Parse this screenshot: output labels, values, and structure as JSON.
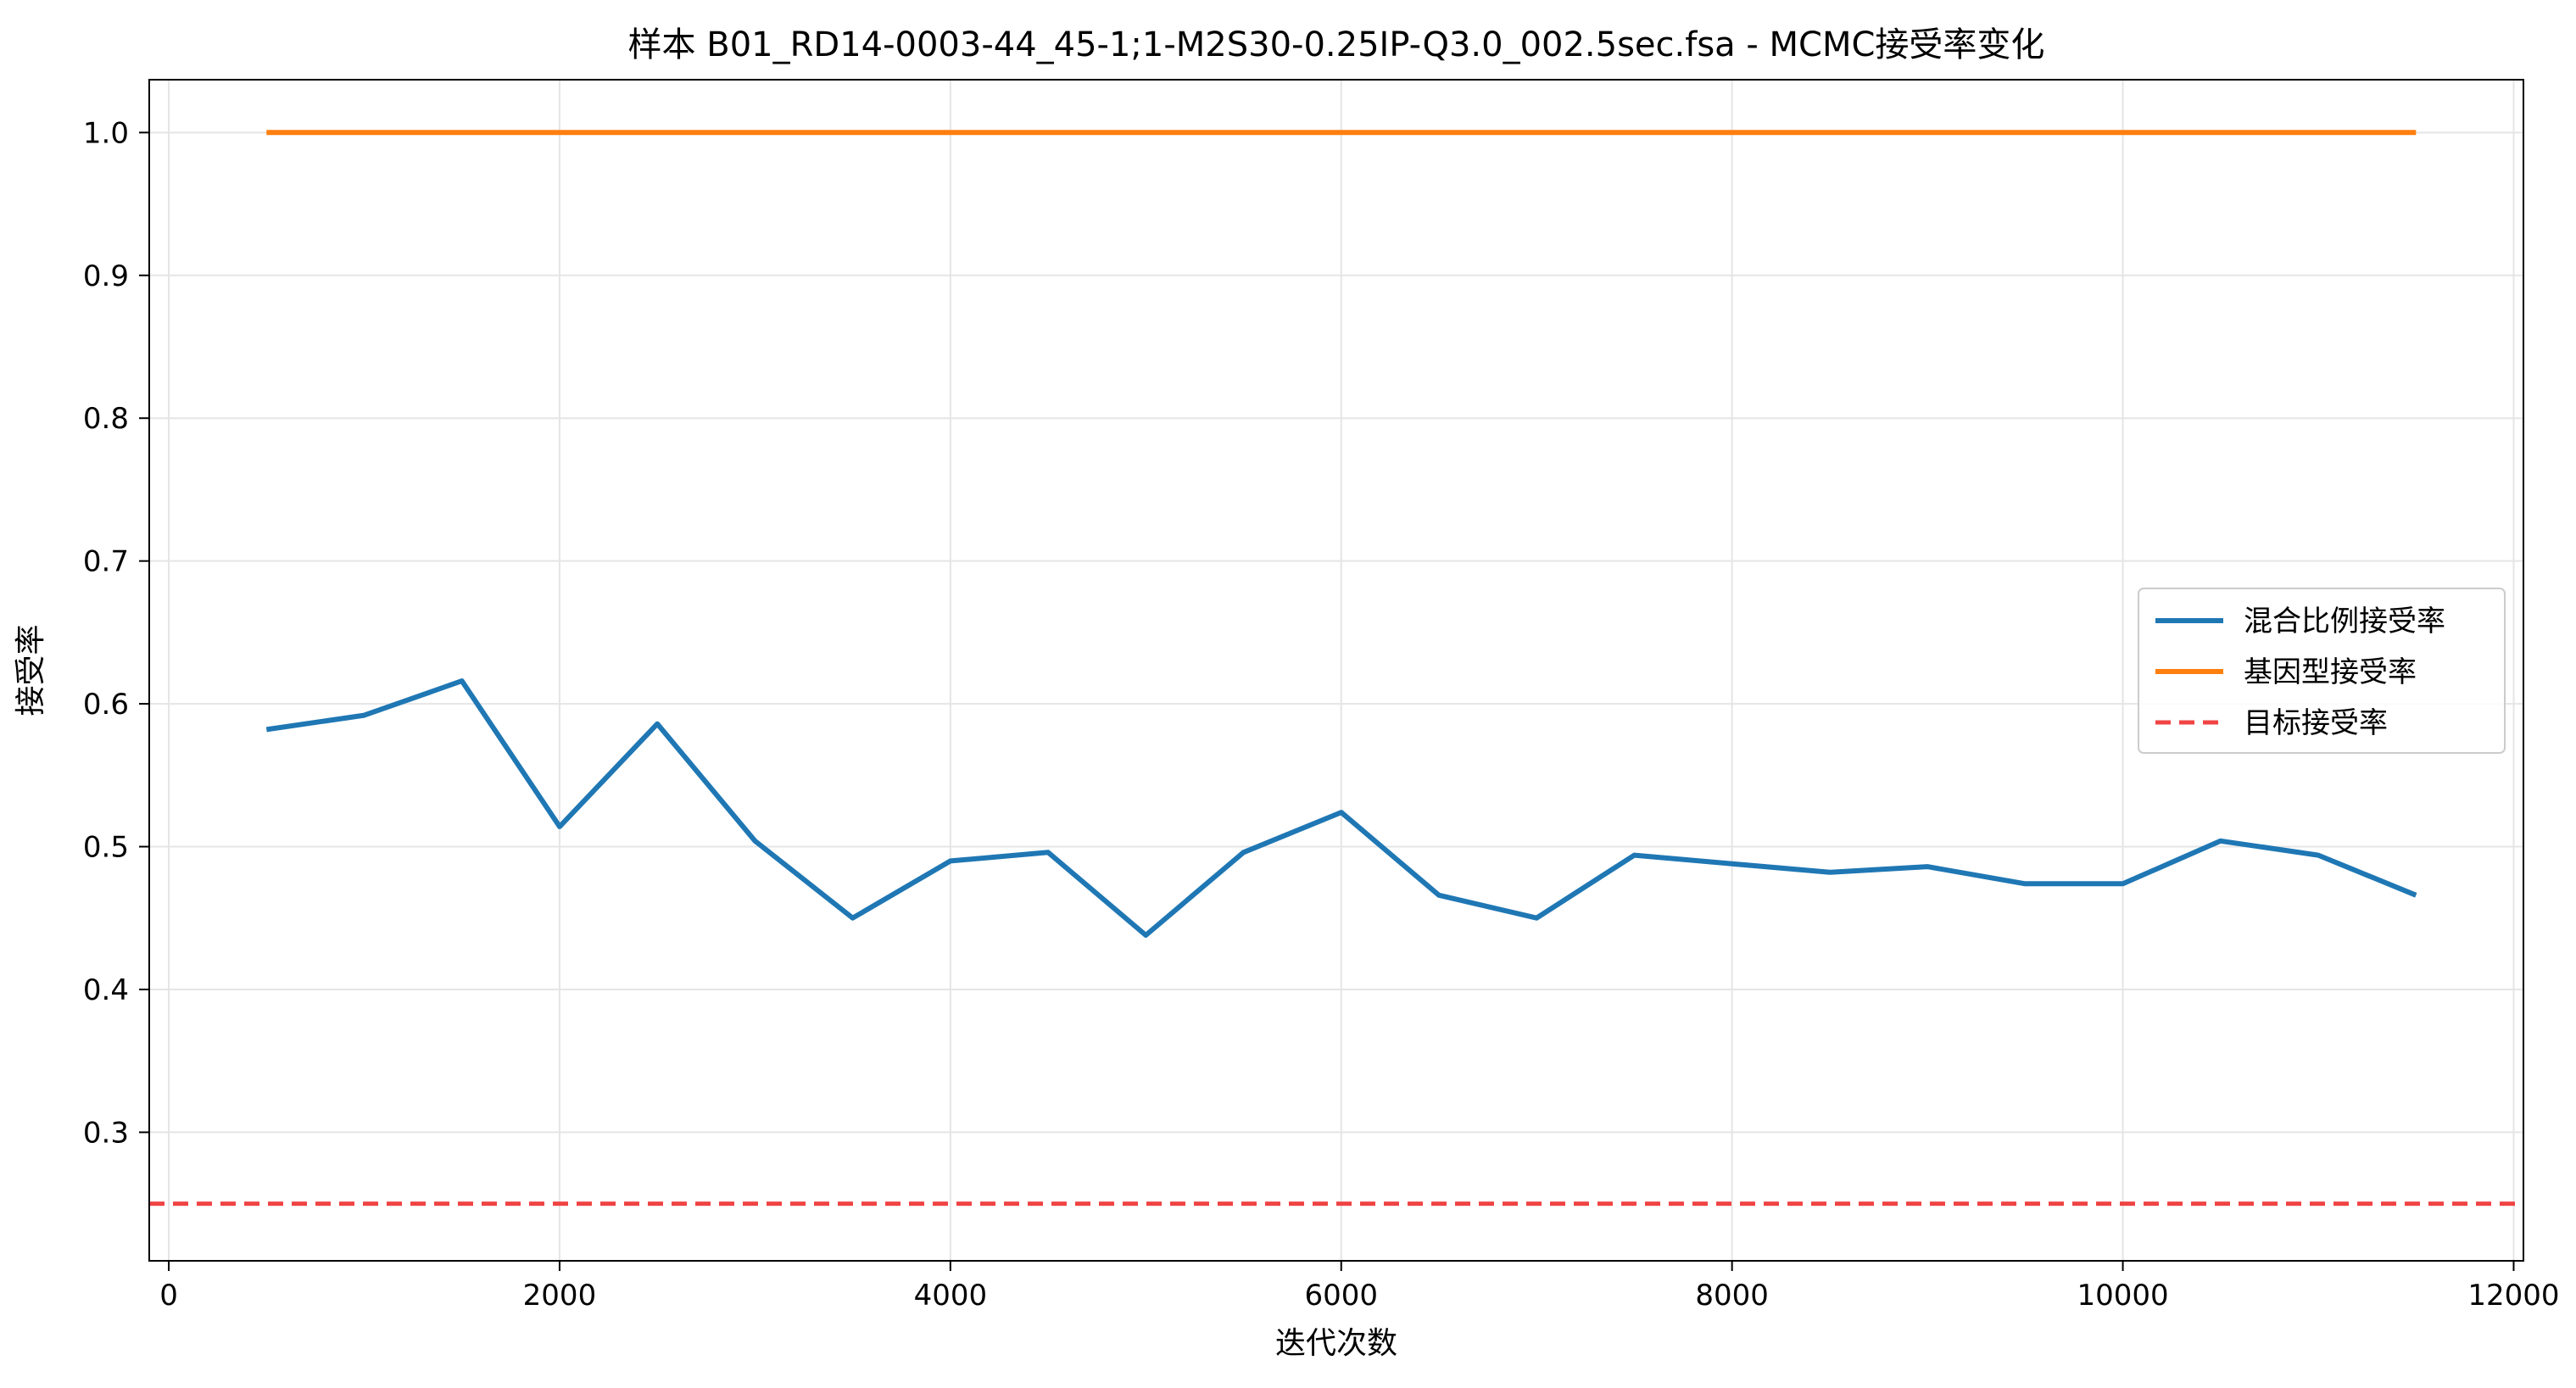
{
  "chart_data": {
    "type": "line",
    "title": "样本 B01_RD14-0003-44_45-1;1-M2S30-0.25IP-Q3.0_002.5sec.fsa - MCMC接受率变化",
    "xlabel": "迭代次数",
    "ylabel": "接受率",
    "xlim": [
      -100,
      12050
    ],
    "ylim": [
      0.21,
      1.037
    ],
    "xticks": [
      0,
      2000,
      4000,
      6000,
      8000,
      10000,
      12000
    ],
    "xtick_labels": [
      "0",
      "2000",
      "4000",
      "6000",
      "8000",
      "10000",
      "12000"
    ],
    "yticks": [
      0.3,
      0.4,
      0.5,
      0.6,
      0.7,
      0.8,
      0.9,
      1.0
    ],
    "ytick_labels": [
      "0.3",
      "0.4",
      "0.5",
      "0.6",
      "0.7",
      "0.8",
      "0.9",
      "1.0"
    ],
    "grid": true,
    "legend_position": "center-right",
    "series": [
      {
        "name": "混合比例接受率",
        "color": "#1f77b4",
        "style": "solid",
        "x": [
          500,
          1000,
          1500,
          2000,
          2500,
          3000,
          3500,
          4000,
          4500,
          5000,
          5500,
          6000,
          6500,
          7000,
          7500,
          8000,
          8500,
          9000,
          9500,
          10000,
          10500,
          11000,
          11500
        ],
        "y": [
          0.582,
          0.592,
          0.616,
          0.514,
          0.586,
          0.504,
          0.45,
          0.49,
          0.496,
          0.438,
          0.496,
          0.524,
          0.466,
          0.45,
          0.494,
          0.488,
          0.482,
          0.486,
          0.474,
          0.474,
          0.504,
          0.494,
          0.466
        ]
      },
      {
        "name": "基因型接受率",
        "color": "#ff7f0e",
        "style": "solid",
        "x": [
          500,
          1000,
          1500,
          2000,
          2500,
          3000,
          3500,
          4000,
          4500,
          5000,
          5500,
          6000,
          6500,
          7000,
          7500,
          8000,
          8500,
          9000,
          9500,
          10000,
          10500,
          11000,
          11500
        ],
        "y": [
          1.0,
          1.0,
          1.0,
          1.0,
          1.0,
          1.0,
          1.0,
          1.0,
          1.0,
          1.0,
          1.0,
          1.0,
          1.0,
          1.0,
          1.0,
          1.0,
          1.0,
          1.0,
          1.0,
          1.0,
          1.0,
          1.0,
          1.0
        ]
      },
      {
        "name": "目标接受率",
        "color": "#ef4444",
        "style": "dashed",
        "type": "hline",
        "y": 0.25
      }
    ]
  }
}
